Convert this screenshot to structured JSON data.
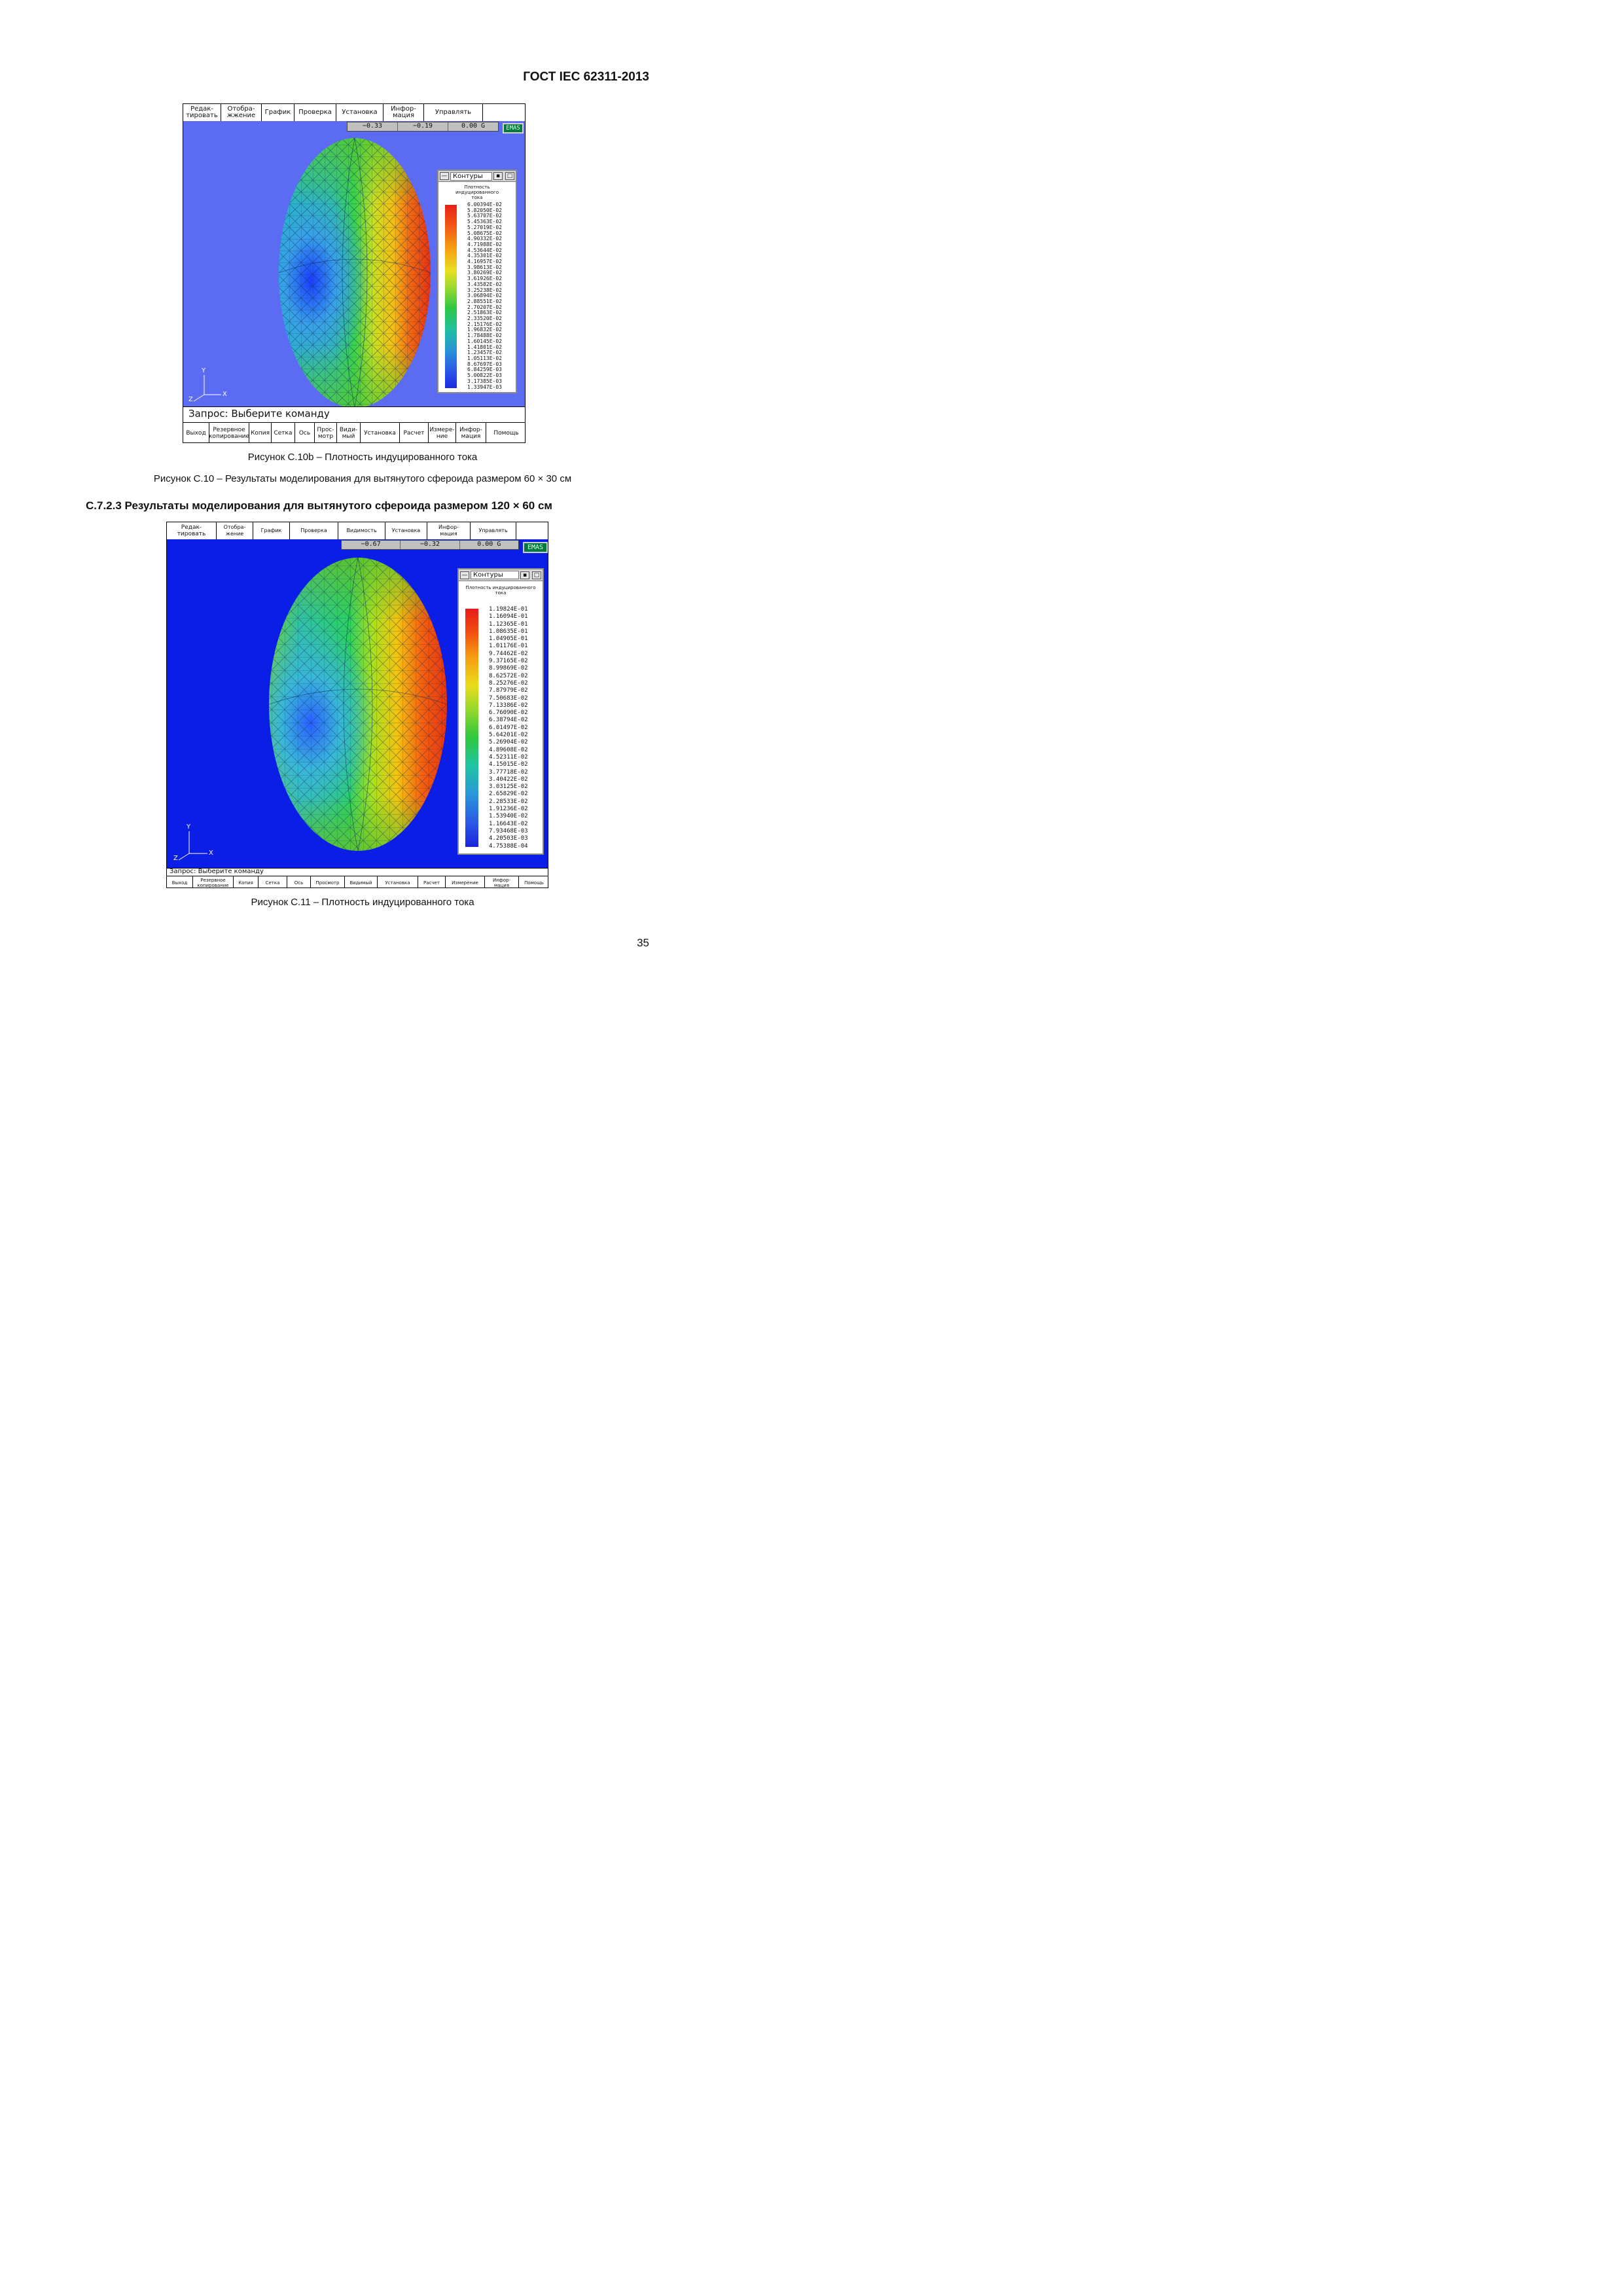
{
  "header": {
    "doc_code": "ГОСТ IEC 62311-2013"
  },
  "page_number": "35",
  "colors": {
    "viewport_bg_fig10": "#5b6cf2",
    "viewport_bg_fig11": "#0a1ee6",
    "emas_bg": "#007a3d"
  },
  "figure_c10b": {
    "menu": [
      "Редак-\nтировать",
      "Отобра-\nжжение",
      "График",
      "Проверка",
      "Установка",
      "Инфор-\nмация",
      "Управлять"
    ],
    "coords": [
      "−0.33",
      "−0.19",
      "0.00 G"
    ],
    "emas": "EMAS",
    "legend": {
      "title": "Контуры",
      "heading": "Плотность\nиндуцированного\nтока",
      "values": [
        "6.00394E-02",
        "5.82050E-02",
        "5.63707E-02",
        "5.45363E-02",
        "5.27019E-02",
        "5.08675E-02",
        "4.90332E-02",
        "4.71988E-02",
        "4.53644E-02",
        "4.35301E-02",
        "4.16957E-02",
        "3.98613E-02",
        "3.80269E-02",
        "3.61926E-02",
        "3.43582E-02",
        "3.25238E-02",
        "3.06894E-02",
        "2.88551E-02",
        "2.70207E-02",
        "2.51863E-02",
        "2.33520E-02",
        "2.15176E-02",
        "1.96832E-02",
        "1.78488E-02",
        "1.60145E-02",
        "1.41801E-02",
        "1.23457E-02",
        "1.05113E-02",
        "8.67697E-03",
        "6.84259E-03",
        "5.00822E-03",
        "3.17385E-03",
        "1.33947E-03"
      ]
    },
    "axes": {
      "y": "Y",
      "z": "Z",
      "x": "X"
    },
    "prompt": "Запрос: Выберите команду",
    "commands": [
      "Выход",
      "Резервное\nкопирование",
      "Копия",
      "Сетка",
      "Ось",
      "Прос-\nмотр",
      "Види-\nмый",
      "Установка",
      "Расчет",
      "Измере-\nние",
      "Инфор-\nмация",
      "Помощь"
    ],
    "caption": "Рисунок С.10b – Плотность индуцированного тока"
  },
  "figure_c10_caption": "Рисунок С.10 – Результаты моделирования для вытянутого сфероида размером 60 × 30 см",
  "section_heading": "С.7.2.3 Результаты моделирования для вытянутого сфероида размером 120 × 60 см",
  "figure_c11": {
    "menu": [
      "Редак-\nтировать",
      "Отобра-\nжение",
      "График",
      "Проверка",
      "Видимость",
      "Установка",
      "Инфор-\nмация",
      "Управлять"
    ],
    "coords": [
      "−0.67",
      "−0.32",
      "0.00 G"
    ],
    "emas": "EMAS",
    "legend": {
      "title": "Контуры",
      "heading": "Плотность индуцированного\nтока",
      "values": [
        "1.19824E-01",
        "1.16094E-01",
        "1.12365E-01",
        "1.08635E-01",
        "1.04905E-01",
        "1.01176E-01",
        "9.74462E-02",
        "9.37165E-02",
        "8.99869E-02",
        "8.62572E-02",
        "8.25276E-02",
        "7.87979E-02",
        "7.50683E-02",
        "7.13386E-02",
        "6.76090E-02",
        "6.38794E-02",
        "6.01497E-02",
        "5.64201E-02",
        "5.26904E-02",
        "4.89608E-02",
        "4.52311E-02",
        "4.15015E-02",
        "3.77718E-02",
        "3.40422E-02",
        "3.03125E-02",
        "2.65829E-02",
        "2.28533E-02",
        "1.91236E-02",
        "1.53940E-02",
        "1.16643E-02",
        "7.93468E-03",
        "4.20503E-03",
        "4.75388E-04"
      ]
    },
    "axes": {
      "y": "Y",
      "z": "Z",
      "x": "X"
    },
    "prompt": "Запрос: Выберите команду",
    "commands": [
      "Выход",
      "Резервное\nкопирование",
      "Копия",
      "Сетка",
      "Ось",
      "Просмотр",
      "Видимый",
      "Установка",
      "Расчет",
      "Измерение",
      "Инфор-\nмация",
      "Помощь"
    ],
    "caption": "Рисунок С.11 – Плотность индуцированного тока"
  }
}
